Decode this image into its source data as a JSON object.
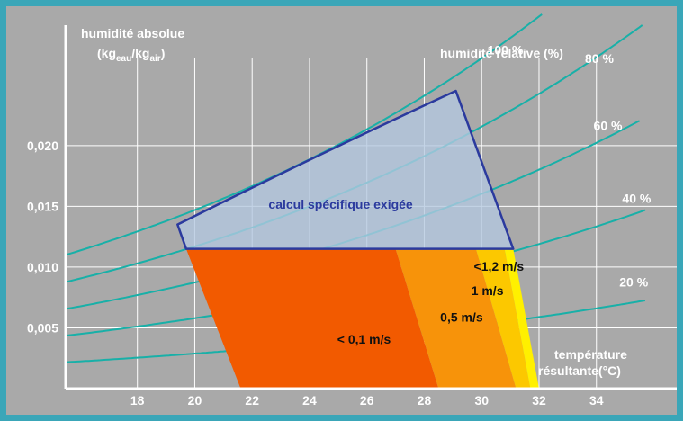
{
  "colors": {
    "frame": "#3aa6b8",
    "background": "#a9a9a9",
    "grid": "#ffffff",
    "rh_curves": "#18b0a8",
    "zone_01": "#f25a00",
    "zone_05": "#f7930a",
    "zone_1": "#fcc800",
    "zone_12": "#fff000",
    "special_fill": "#b4c8e0",
    "special_border": "#2b3a9e"
  },
  "chart_data": {
    "type": "area",
    "ylabel_line1": "humidité absolue",
    "ylabel_line2": {
      "base1": "(kg",
      "sub1": "eau",
      "mid": "/kg",
      "sub2": "air",
      "end": ")"
    },
    "xlabel_line1": "température",
    "xlabel_line2": "résultante(°C)",
    "rh_title": "humidité relative (%)",
    "xlim": [
      15.5,
      36.8
    ],
    "ylim": [
      0,
      0.0305
    ],
    "x_ticks": [
      18,
      20,
      22,
      24,
      26,
      28,
      30,
      32,
      34
    ],
    "x_tick_labels": [
      "18",
      "20",
      "22",
      "24",
      "26",
      "28",
      "30",
      "32",
      "34"
    ],
    "y_ticks": [
      0.005,
      0.01,
      0.015,
      0.02
    ],
    "y_tick_labels": [
      "0,005",
      "0,010",
      "0,015",
      "0,020"
    ],
    "rh_curves": [
      {
        "label": "100 %",
        "rh": 100,
        "x_end": 32.1,
        "label_x": 30.2,
        "label_y": 0.0275
      },
      {
        "label": "80 %",
        "rh": 80,
        "x_end": 35.6,
        "label_x": 33.6,
        "label_y": 0.0268
      },
      {
        "label": "60 %",
        "rh": 60,
        "x_end": 35.5,
        "label_x": 33.9,
        "label_y": 0.0213
      },
      {
        "label": "40 %",
        "rh": 40,
        "x_end": 35.7,
        "label_x": 34.9,
        "label_y": 0.0153
      },
      {
        "label": "20 %",
        "rh": 20,
        "x_end": 35.7,
        "label_x": 34.8,
        "label_y": 0.0084
      }
    ],
    "comfort_zones": [
      {
        "label": "< 0,1 m/s",
        "polygon": [
          [
            19.7,
            0.0115
          ],
          [
            27.0,
            0.0115
          ],
          [
            28.5,
            0.0
          ],
          [
            21.6,
            0.0
          ]
        ],
        "label_x": 25.9,
        "label_y": 0.0037
      },
      {
        "label": "0,5 m/s",
        "polygon": [
          [
            27.0,
            0.0115
          ],
          [
            29.8,
            0.0115
          ],
          [
            31.2,
            0.0
          ],
          [
            28.5,
            0.0
          ]
        ],
        "label_x": 29.3,
        "label_y": 0.0055
      },
      {
        "label": "1 m/s",
        "polygon": [
          [
            29.8,
            0.0115
          ],
          [
            30.8,
            0.0115
          ],
          [
            31.7,
            0.0
          ],
          [
            31.2,
            0.0
          ]
        ],
        "label_x": 30.2,
        "label_y": 0.0077
      },
      {
        "label": "<1,2 m/s",
        "polygon": [
          [
            30.8,
            0.0115
          ],
          [
            31.1,
            0.0115
          ],
          [
            32.0,
            0.0
          ],
          [
            31.7,
            0.0
          ]
        ],
        "label_x": 30.6,
        "label_y": 0.0097
      }
    ],
    "special_zone": {
      "label": "calcul spécifique exigée",
      "polygon": [
        [
          19.4,
          0.0135
        ],
        [
          19.7,
          0.0115
        ],
        [
          31.1,
          0.0115
        ],
        [
          29.1,
          0.0245
        ]
      ],
      "upper_curve_rh": 100,
      "label_x": 27.6,
      "label_y": 0.0148
    }
  }
}
